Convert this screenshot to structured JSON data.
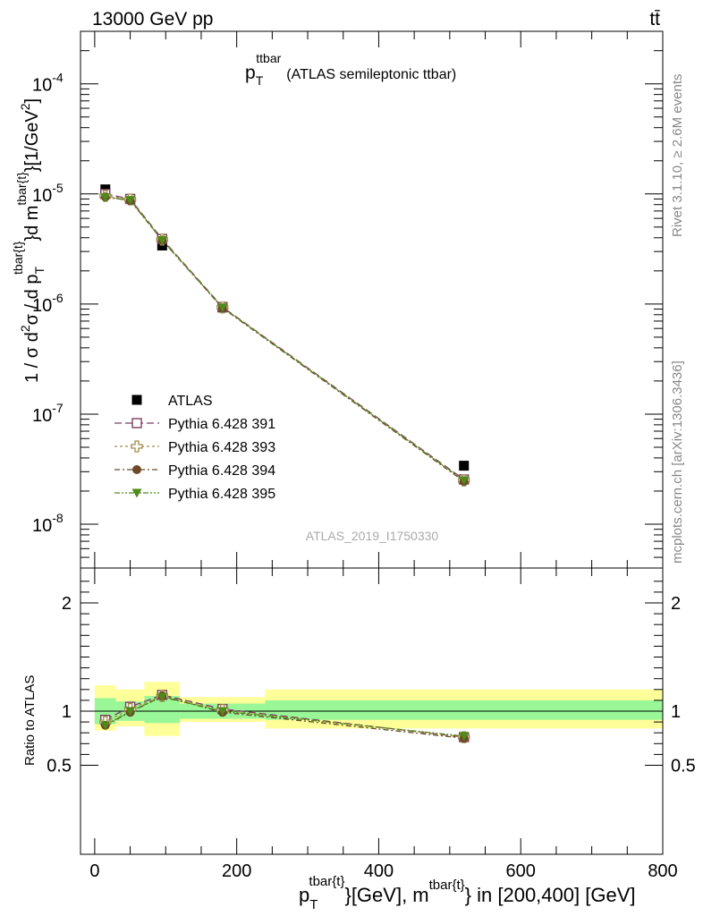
{
  "header": {
    "left": "13000 GeV pp",
    "right": "tt̄"
  },
  "side_texts": {
    "rivet": "Rivet 3.1.10, ≥ 2.6M events",
    "mcplots": "mcplots.cern.ch [arXiv:1306.3436]"
  },
  "watermark": "ATLAS_2019_I1750330",
  "main_title": {
    "base": "p",
    "sub": "T",
    "sup": "ttbar",
    "rest": "(ATLAS semileptonic ttbar)"
  },
  "ylabel_main": "1 / σ d²σ / d p_T^{tbar{t}}d m^{tbar{t}}[1/GeV²]",
  "ylabel_main_parts": {
    "a": "1 / σ d",
    "two": "2",
    "b": "σ / d p",
    "T": "T",
    "sup1": "tbar{t}",
    "c": "}d m",
    "sup2": "tbar{t}",
    "d": "}[1/GeV",
    "two2": "2",
    "e": "]"
  },
  "ylabel_ratio": "Ratio to ATLAS",
  "xlabel_parts": {
    "p": "p",
    "T": "T",
    "sup1": "tbar{t}",
    "a": "}[GeV], m",
    "sup2": "tbar{t}",
    "b": "} in [200,400] [GeV]"
  },
  "colors": {
    "data": "#000000",
    "p391": "#7b3f61",
    "p393": "#a08c4c",
    "p394": "#6b4a25",
    "p395": "#4f8a1a",
    "band_inner": "#99f797",
    "band_outer": "#ffff99"
  },
  "chart_data": [
    {
      "type": "scatter",
      "panel": "main",
      "x_range": [
        -20,
        800
      ],
      "ylim": [
        4e-09,
        0.0003
      ],
      "y_scale": "log",
      "x_ticks": [
        0,
        200,
        400,
        600,
        800
      ],
      "y_tick_labels": [
        {
          "v": 1e-08,
          "label": "10",
          "exp": "-8"
        },
        {
          "v": 1e-07,
          "label": "10",
          "exp": "-7"
        },
        {
          "v": 1e-06,
          "label": "10",
          "exp": "-6"
        },
        {
          "v": 1e-05,
          "label": "10",
          "exp": "-5"
        },
        {
          "v": 0.0001,
          "label": "10",
          "exp": "-4"
        }
      ],
      "x": [
        15,
        50,
        95,
        180,
        520
      ],
      "series": [
        {
          "name": "ATLAS",
          "key": "data",
          "marker": "square-filled",
          "values": [
            1.1e-05,
            9e-06,
            3.4e-06,
            9.3e-07,
            3.4e-08
          ]
        },
        {
          "name": "Pythia 6.428 391",
          "key": "p391",
          "marker": "square-open",
          "values": [
            1e-05,
            9e-06,
            3.9e-06,
            9.4e-07,
            2.55e-08
          ]
        },
        {
          "name": "Pythia 6.428 393",
          "key": "p393",
          "marker": "cross-open",
          "values": [
            9.6e-06,
            8.9e-06,
            3.85e-06,
            9.3e-07,
            2.5e-08
          ]
        },
        {
          "name": "Pythia 6.428 394",
          "key": "p394",
          "marker": "circle-filled",
          "values": [
            9.4e-06,
            8.7e-06,
            3.8e-06,
            9.2e-07,
            2.45e-08
          ]
        },
        {
          "name": "Pythia 6.428 395",
          "key": "p395",
          "marker": "triangle-down-filled",
          "values": [
            9.3e-06,
            8.8e-06,
            3.8e-06,
            9.3e-07,
            2.5e-08
          ]
        }
      ],
      "legend_position": "left-center"
    },
    {
      "type": "line",
      "panel": "ratio",
      "ylabel": "Ratio to ATLAS",
      "y_ticks": [
        0.5,
        1,
        2
      ],
      "x": [
        15,
        50,
        95,
        180,
        520
      ],
      "bins": [
        [
          0,
          30
        ],
        [
          30,
          70
        ],
        [
          70,
          120
        ],
        [
          120,
          240
        ],
        [
          240,
          800
        ]
      ],
      "band_inner": [
        [
          0.88,
          1.12
        ],
        [
          0.91,
          1.09
        ],
        [
          0.89,
          1.14
        ],
        [
          0.93,
          1.07
        ],
        [
          0.92,
          1.1
        ]
      ],
      "band_outer": [
        [
          0.82,
          1.24
        ],
        [
          0.86,
          1.2
        ],
        [
          0.77,
          1.27
        ],
        [
          0.9,
          1.13
        ],
        [
          0.84,
          1.2
        ]
      ],
      "series": [
        {
          "name": "Pythia 6.428 391",
          "key": "p391",
          "marker": "square-open",
          "values": [
            0.92,
            1.04,
            1.15,
            1.02,
            0.76
          ]
        },
        {
          "name": "Pythia 6.428 393",
          "key": "p393",
          "marker": "cross-open",
          "values": [
            0.9,
            1.02,
            1.14,
            1.01,
            0.76
          ]
        },
        {
          "name": "Pythia 6.428 394",
          "key": "p394",
          "marker": "circle-filled",
          "values": [
            0.87,
            0.99,
            1.14,
            0.99,
            0.75
          ]
        },
        {
          "name": "Pythia 6.428 395",
          "key": "p395",
          "marker": "triangle-down-filled",
          "values": [
            0.87,
            1.0,
            1.13,
            1.0,
            0.77
          ]
        }
      ]
    }
  ]
}
